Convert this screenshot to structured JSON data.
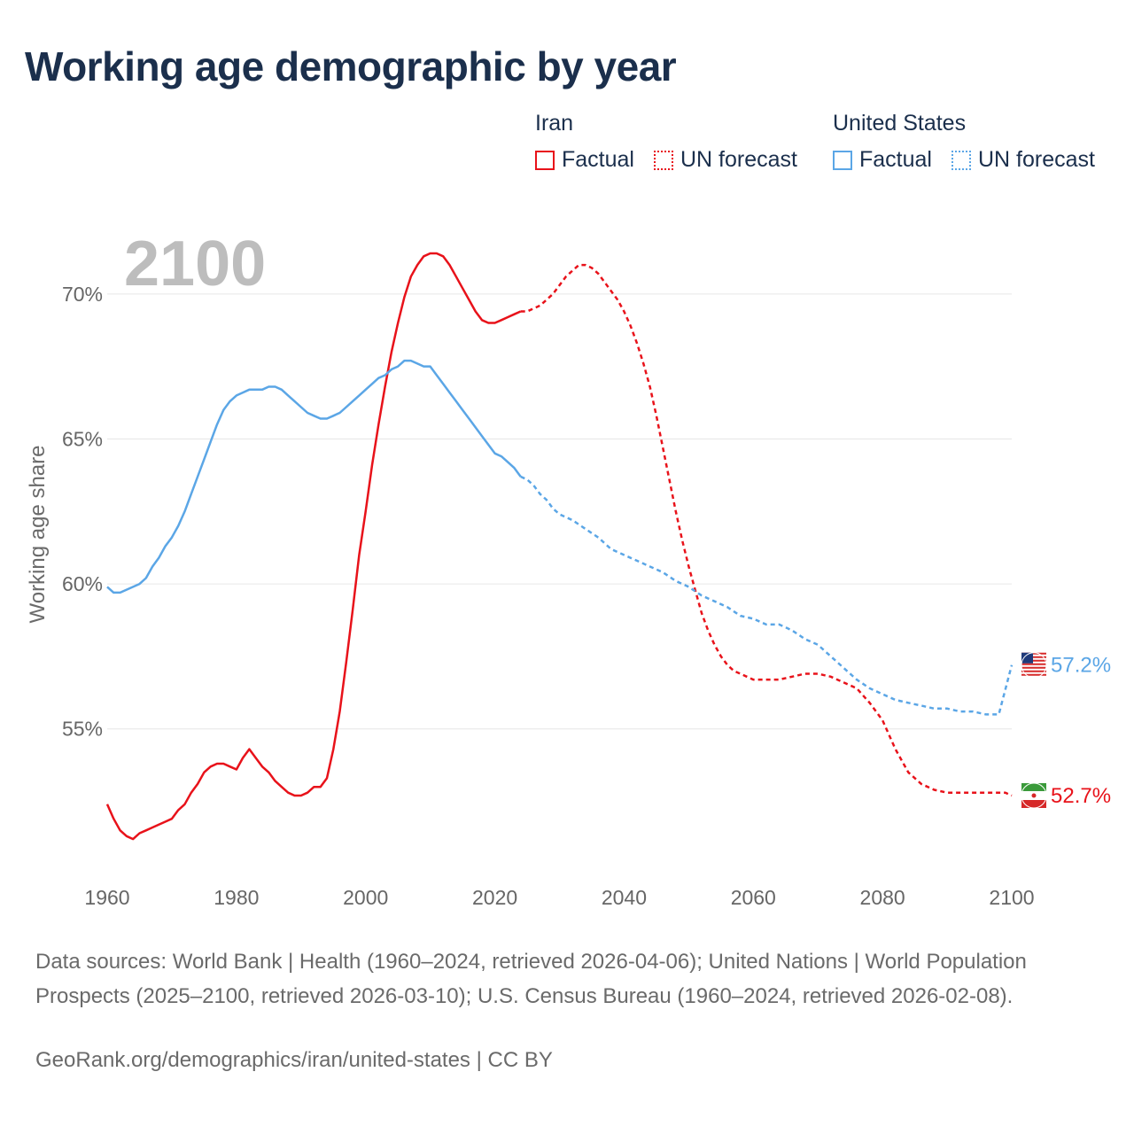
{
  "title": "Working age demographic by year",
  "legend": {
    "iran": {
      "title": "Iran",
      "factual": "Factual",
      "forecast": "UN forecast",
      "color": "#e8121a"
    },
    "us": {
      "title": "United States",
      "factual": "Factual",
      "forecast": "UN forecast",
      "color": "#5ba6e6"
    }
  },
  "year_watermark": "2100",
  "sources": "Data sources: World Bank | Health (1960–2024, retrieved 2026-04-06); United Nations | World Population Prospects (2025–2100, retrieved 2026-03-10); U.S. Census Bureau (1960–2024, retrieved 2026-02-08).",
  "credit": "GeoRank.org/demographics/iran/united-states | CC BY",
  "chart_data": {
    "type": "line",
    "title": "Working age demographic by year",
    "xlabel": "",
    "ylabel": "Working age share",
    "xlim": [
      1960,
      2100
    ],
    "ylim": [
      50.5,
      72.5
    ],
    "x_ticks": [
      "1960",
      "1980",
      "2000",
      "2020",
      "2040",
      "2060",
      "2080",
      "2100"
    ],
    "y_ticks": [
      {
        "value": 55,
        "label": "55%"
      },
      {
        "value": 60,
        "label": "60%"
      },
      {
        "value": 65,
        "label": "65%"
      },
      {
        "value": 70,
        "label": "70%"
      }
    ],
    "grid": true,
    "forecast_start_year": 2024,
    "series": [
      {
        "name": "Iran",
        "color": "#e8121a",
        "end_label": "52.7%",
        "points": [
          [
            1960,
            52.4
          ],
          [
            1961,
            51.9
          ],
          [
            1962,
            51.5
          ],
          [
            1963,
            51.3
          ],
          [
            1964,
            51.2
          ],
          [
            1965,
            51.4
          ],
          [
            1966,
            51.5
          ],
          [
            1967,
            51.6
          ],
          [
            1968,
            51.7
          ],
          [
            1969,
            51.8
          ],
          [
            1970,
            51.9
          ],
          [
            1971,
            52.2
          ],
          [
            1972,
            52.4
          ],
          [
            1973,
            52.8
          ],
          [
            1974,
            53.1
          ],
          [
            1975,
            53.5
          ],
          [
            1976,
            53.7
          ],
          [
            1977,
            53.8
          ],
          [
            1978,
            53.8
          ],
          [
            1979,
            53.7
          ],
          [
            1980,
            53.6
          ],
          [
            1981,
            54.0
          ],
          [
            1982,
            54.3
          ],
          [
            1983,
            54.0
          ],
          [
            1984,
            53.7
          ],
          [
            1985,
            53.5
          ],
          [
            1986,
            53.2
          ],
          [
            1987,
            53.0
          ],
          [
            1988,
            52.8
          ],
          [
            1989,
            52.7
          ],
          [
            1990,
            52.7
          ],
          [
            1991,
            52.8
          ],
          [
            1992,
            53.0
          ],
          [
            1993,
            53.0
          ],
          [
            1994,
            53.3
          ],
          [
            1995,
            54.3
          ],
          [
            1996,
            55.6
          ],
          [
            1997,
            57.3
          ],
          [
            1998,
            59.1
          ],
          [
            1999,
            61.0
          ],
          [
            2000,
            62.5
          ],
          [
            2001,
            64.1
          ],
          [
            2002,
            65.5
          ],
          [
            2003,
            66.8
          ],
          [
            2004,
            68.0
          ],
          [
            2005,
            69.0
          ],
          [
            2006,
            69.9
          ],
          [
            2007,
            70.6
          ],
          [
            2008,
            71.0
          ],
          [
            2009,
            71.3
          ],
          [
            2010,
            71.4
          ],
          [
            2011,
            71.4
          ],
          [
            2012,
            71.3
          ],
          [
            2013,
            71.0
          ],
          [
            2014,
            70.6
          ],
          [
            2015,
            70.2
          ],
          [
            2016,
            69.8
          ],
          [
            2017,
            69.4
          ],
          [
            2018,
            69.1
          ],
          [
            2019,
            69.0
          ],
          [
            2020,
            69.0
          ],
          [
            2021,
            69.1
          ],
          [
            2022,
            69.2
          ],
          [
            2023,
            69.3
          ],
          [
            2024,
            69.4
          ],
          [
            2025,
            69.4
          ],
          [
            2026,
            69.5
          ],
          [
            2027,
            69.6
          ],
          [
            2028,
            69.8
          ],
          [
            2029,
            70.0
          ],
          [
            2030,
            70.3
          ],
          [
            2031,
            70.6
          ],
          [
            2032,
            70.8
          ],
          [
            2033,
            71.0
          ],
          [
            2034,
            71.0
          ],
          [
            2035,
            70.9
          ],
          [
            2036,
            70.7
          ],
          [
            2037,
            70.4
          ],
          [
            2038,
            70.1
          ],
          [
            2039,
            69.8
          ],
          [
            2040,
            69.4
          ],
          [
            2041,
            68.9
          ],
          [
            2042,
            68.3
          ],
          [
            2043,
            67.6
          ],
          [
            2044,
            66.8
          ],
          [
            2045,
            65.8
          ],
          [
            2046,
            64.7
          ],
          [
            2047,
            63.6
          ],
          [
            2048,
            62.5
          ],
          [
            2049,
            61.5
          ],
          [
            2050,
            60.6
          ],
          [
            2051,
            59.8
          ],
          [
            2052,
            59.0
          ],
          [
            2053,
            58.4
          ],
          [
            2054,
            57.9
          ],
          [
            2055,
            57.5
          ],
          [
            2056,
            57.2
          ],
          [
            2057,
            57.0
          ],
          [
            2058,
            56.9
          ],
          [
            2059,
            56.8
          ],
          [
            2060,
            56.7
          ],
          [
            2062,
            56.7
          ],
          [
            2064,
            56.7
          ],
          [
            2066,
            56.8
          ],
          [
            2068,
            56.9
          ],
          [
            2070,
            56.9
          ],
          [
            2072,
            56.8
          ],
          [
            2074,
            56.6
          ],
          [
            2076,
            56.4
          ],
          [
            2078,
            55.9
          ],
          [
            2080,
            55.3
          ],
          [
            2082,
            54.3
          ],
          [
            2084,
            53.5
          ],
          [
            2086,
            53.1
          ],
          [
            2088,
            52.9
          ],
          [
            2090,
            52.8
          ],
          [
            2092,
            52.8
          ],
          [
            2094,
            52.8
          ],
          [
            2096,
            52.8
          ],
          [
            2098,
            52.8
          ],
          [
            2099,
            52.8
          ],
          [
            2100,
            52.7
          ]
        ]
      },
      {
        "name": "United States",
        "color": "#5ba6e6",
        "end_label": "57.2%",
        "points": [
          [
            1960,
            59.9
          ],
          [
            1961,
            59.7
          ],
          [
            1962,
            59.7
          ],
          [
            1963,
            59.8
          ],
          [
            1964,
            59.9
          ],
          [
            1965,
            60.0
          ],
          [
            1966,
            60.2
          ],
          [
            1967,
            60.6
          ],
          [
            1968,
            60.9
          ],
          [
            1969,
            61.3
          ],
          [
            1970,
            61.6
          ],
          [
            1971,
            62.0
          ],
          [
            1972,
            62.5
          ],
          [
            1973,
            63.1
          ],
          [
            1974,
            63.7
          ],
          [
            1975,
            64.3
          ],
          [
            1976,
            64.9
          ],
          [
            1977,
            65.5
          ],
          [
            1978,
            66.0
          ],
          [
            1979,
            66.3
          ],
          [
            1980,
            66.5
          ],
          [
            1981,
            66.6
          ],
          [
            1982,
            66.7
          ],
          [
            1983,
            66.7
          ],
          [
            1984,
            66.7
          ],
          [
            1985,
            66.8
          ],
          [
            1986,
            66.8
          ],
          [
            1987,
            66.7
          ],
          [
            1988,
            66.5
          ],
          [
            1989,
            66.3
          ],
          [
            1990,
            66.1
          ],
          [
            1991,
            65.9
          ],
          [
            1992,
            65.8
          ],
          [
            1993,
            65.7
          ],
          [
            1994,
            65.7
          ],
          [
            1995,
            65.8
          ],
          [
            1996,
            65.9
          ],
          [
            1997,
            66.1
          ],
          [
            1998,
            66.3
          ],
          [
            1999,
            66.5
          ],
          [
            2000,
            66.7
          ],
          [
            2001,
            66.9
          ],
          [
            2002,
            67.1
          ],
          [
            2003,
            67.2
          ],
          [
            2004,
            67.4
          ],
          [
            2005,
            67.5
          ],
          [
            2006,
            67.7
          ],
          [
            2007,
            67.7
          ],
          [
            2008,
            67.6
          ],
          [
            2009,
            67.5
          ],
          [
            2010,
            67.5
          ],
          [
            2011,
            67.2
          ],
          [
            2012,
            66.9
          ],
          [
            2013,
            66.6
          ],
          [
            2014,
            66.3
          ],
          [
            2015,
            66.0
          ],
          [
            2016,
            65.7
          ],
          [
            2017,
            65.4
          ],
          [
            2018,
            65.1
          ],
          [
            2019,
            64.8
          ],
          [
            2020,
            64.5
          ],
          [
            2021,
            64.4
          ],
          [
            2022,
            64.2
          ],
          [
            2023,
            64.0
          ],
          [
            2024,
            63.7
          ],
          [
            2025,
            63.6
          ],
          [
            2026,
            63.4
          ],
          [
            2027,
            63.1
          ],
          [
            2028,
            62.9
          ],
          [
            2029,
            62.6
          ],
          [
            2030,
            62.4
          ],
          [
            2032,
            62.2
          ],
          [
            2034,
            61.9
          ],
          [
            2036,
            61.6
          ],
          [
            2038,
            61.2
          ],
          [
            2040,
            61.0
          ],
          [
            2042,
            60.8
          ],
          [
            2044,
            60.6
          ],
          [
            2046,
            60.4
          ],
          [
            2048,
            60.1
          ],
          [
            2050,
            59.9
          ],
          [
            2052,
            59.6
          ],
          [
            2054,
            59.4
          ],
          [
            2056,
            59.2
          ],
          [
            2058,
            58.9
          ],
          [
            2060,
            58.8
          ],
          [
            2062,
            58.6
          ],
          [
            2064,
            58.6
          ],
          [
            2066,
            58.4
          ],
          [
            2068,
            58.1
          ],
          [
            2070,
            57.9
          ],
          [
            2072,
            57.5
          ],
          [
            2074,
            57.1
          ],
          [
            2076,
            56.7
          ],
          [
            2078,
            56.4
          ],
          [
            2080,
            56.2
          ],
          [
            2082,
            56.0
          ],
          [
            2084,
            55.9
          ],
          [
            2086,
            55.8
          ],
          [
            2088,
            55.7
          ],
          [
            2090,
            55.7
          ],
          [
            2092,
            55.6
          ],
          [
            2094,
            55.6
          ],
          [
            2096,
            55.5
          ],
          [
            2098,
            55.5
          ],
          [
            2100,
            57.2
          ]
        ]
      }
    ]
  }
}
